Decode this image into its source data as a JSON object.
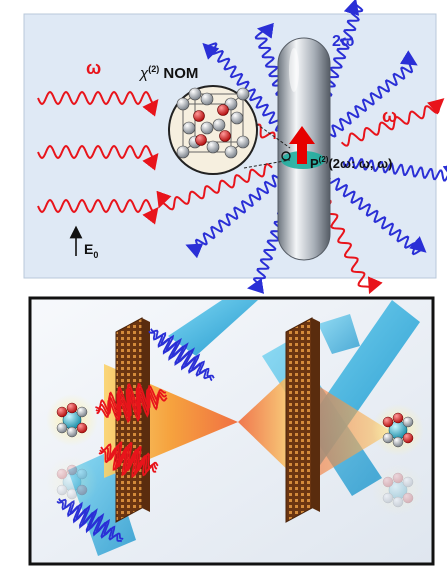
{
  "panel_a": {
    "omega_left": "ω",
    "omega_right": "ω",
    "two_omega": "2ω",
    "chi_symbol": "χ",
    "chi_order": "(2)",
    "chi_suffix": " NOM",
    "e_field": "E",
    "e_field_sub": "0",
    "polarization_symbol": "P",
    "polarization_order": "(2)",
    "polarization_args": "(2ω: ω, ω)",
    "colors": {
      "background": "#dfe9f5",
      "fundamental": "#e8141b",
      "second_harmonic": "#2a2fd6",
      "rod": "#9aa3ad",
      "sphere": "#f6efdf",
      "dipole": "#e60000",
      "hotspot": "#1fae9e"
    }
  },
  "panel_b": {
    "colors": {
      "frame": "#111111",
      "background": "#eef2f7",
      "beam": "#1aa9d6",
      "cone": "#f7941d",
      "metasurface": "#8a4b1f",
      "molecule_center": "#2bb5c9",
      "molecule_atom": "#d93b3b",
      "fundamental": "#e8141b",
      "second_harmonic": "#2a2fd6"
    }
  }
}
